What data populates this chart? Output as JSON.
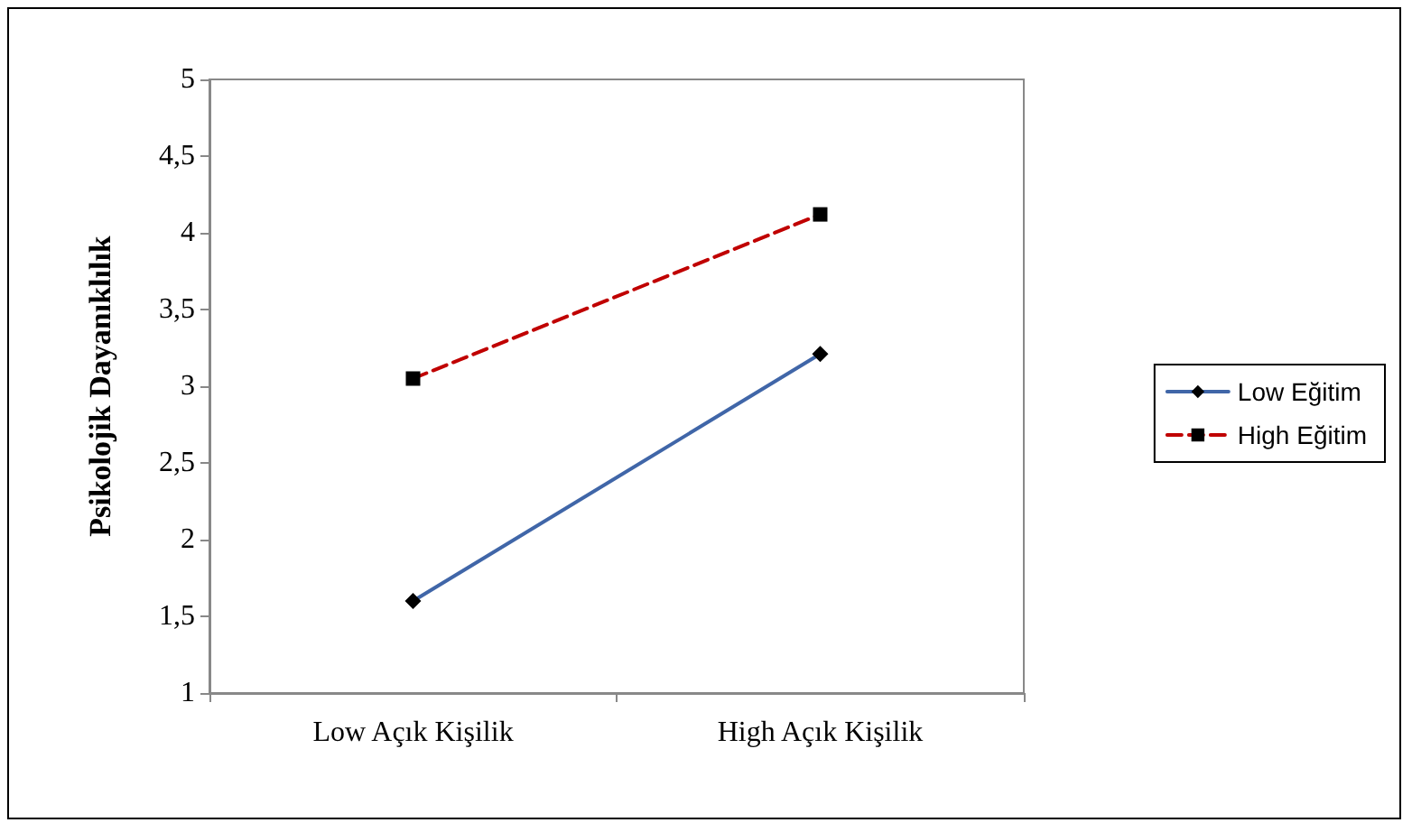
{
  "chart_data": {
    "type": "line",
    "ylabel": "Psikolojik Dayanıklılık",
    "categories": [
      "Low Açık Kişilik",
      "High Açık Kişilik"
    ],
    "series": [
      {
        "name": "Low Eğitim",
        "color": "#4066a8",
        "values": [
          1.6,
          3.21
        ],
        "marker": "diamond",
        "line_style": "solid"
      },
      {
        "name": "High Eğitim",
        "color": "#c00000",
        "values": [
          3.05,
          4.12
        ],
        "marker": "square",
        "line_style": "dashed"
      }
    ],
    "ylim": [
      1,
      5
    ],
    "yticks": [
      1,
      {
        "value": 1.5,
        "label": "1,5"
      },
      2,
      {
        "value": 2.5,
        "label": "2,5"
      },
      3,
      {
        "value": 3.5,
        "label": "3,5"
      },
      4,
      {
        "value": 4.5,
        "label": "4,5"
      },
      5
    ],
    "grid": false,
    "legend": "right"
  }
}
